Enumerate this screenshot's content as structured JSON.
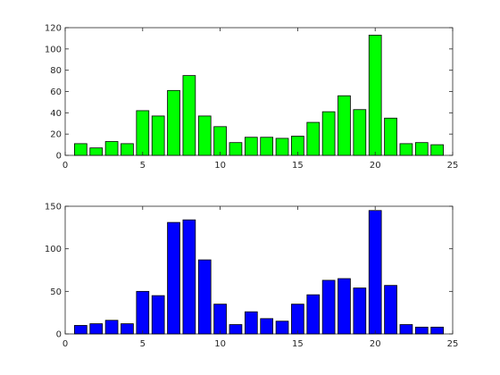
{
  "chart_data": [
    {
      "type": "bar",
      "x": [
        1,
        2,
        3,
        4,
        5,
        6,
        7,
        8,
        9,
        10,
        11,
        12,
        13,
        14,
        15,
        16,
        17,
        18,
        19,
        20,
        21,
        22,
        23,
        24
      ],
      "values": [
        11,
        7,
        13,
        11,
        42,
        37,
        61,
        75,
        37,
        27,
        12,
        17,
        17,
        16,
        18,
        31,
        41,
        56,
        43,
        113,
        35,
        11,
        12,
        10
      ],
      "xlim": [
        0,
        25
      ],
      "ylim": [
        0,
        120
      ],
      "xticks": [
        0,
        5,
        10,
        15,
        20,
        25
      ],
      "yticks": [
        0,
        20,
        40,
        60,
        80,
        100,
        120
      ],
      "bar_color": "#00ff00",
      "grid": false
    },
    {
      "type": "bar",
      "x": [
        1,
        2,
        3,
        4,
        5,
        6,
        7,
        8,
        9,
        10,
        11,
        12,
        13,
        14,
        15,
        16,
        17,
        18,
        19,
        20,
        21,
        22,
        23,
        24
      ],
      "values": [
        10,
        12,
        16,
        12,
        50,
        45,
        131,
        134,
        87,
        35,
        11,
        26,
        18,
        15,
        35,
        46,
        63,
        65,
        54,
        145,
        57,
        11,
        8,
        8
      ],
      "xlim": [
        0,
        25
      ],
      "ylim": [
        0,
        150
      ],
      "xticks": [
        0,
        5,
        10,
        15,
        20,
        25
      ],
      "yticks": [
        0,
        50,
        100,
        150
      ],
      "bar_color": "#0000ff",
      "grid": false
    }
  ]
}
